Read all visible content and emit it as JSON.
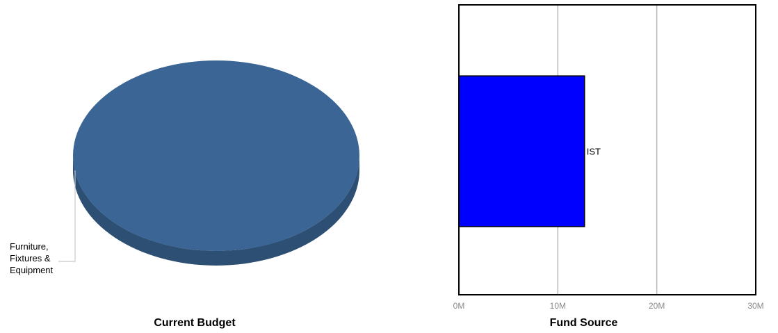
{
  "chart_data": [
    {
      "type": "pie",
      "title": "Current Budget",
      "slices": [
        {
          "label": "Furniture,\nFixtures &\nEquipment",
          "value": 100,
          "color": "#3a6594"
        }
      ]
    },
    {
      "type": "bar",
      "orientation": "horizontal",
      "title": "Fund Source",
      "categories": [
        "IST"
      ],
      "values": [
        12700000
      ],
      "bar_color": "#0000ff",
      "xlim": [
        0,
        30000000
      ],
      "x_ticks": [
        "0M",
        "10M",
        "20M",
        "30M"
      ],
      "grid": true
    }
  ]
}
